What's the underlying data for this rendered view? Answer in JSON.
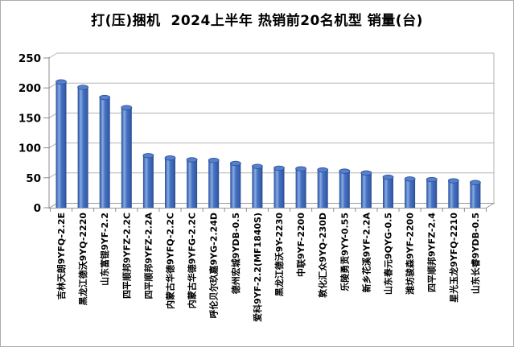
{
  "window": {
    "title": "打(压)捆机  2024上半年 热销前20名机型 销量(台)"
  },
  "chart_data": {
    "type": "bar",
    "style": "3d-cylinder",
    "title": "打(压)捆机  2024上半年 热销前20名机型 销量(台)",
    "xlabel": "",
    "ylabel": "",
    "ylim": [
      0,
      250
    ],
    "ytick_interval": 50,
    "yticks": [
      0,
      50,
      100,
      150,
      200,
      250
    ],
    "grid": true,
    "legend": "none",
    "bar_color": "#4472c4",
    "bar_color_dark": "#2c4c92",
    "bar_color_light": "#8aabde",
    "grid_color": "#b3b3b3",
    "axis_color": "#8c8c8c",
    "categories": [
      "吉林天朗9YFQ-2.2E",
      "黑龙江德沃9YQ-2220",
      "山东富锟9YF-2.2",
      "四平顺邦9YFZ-2.2C",
      "四平顺邦9YFZ-2.2A",
      "内蒙古华德9YFQ-2.2C",
      "内蒙古华德9YFG-2.2C",
      "呼伦贝尔玖嘉9YG-2.24D",
      "德州宏城9YDB-0.5",
      "爱科9YF-2.2(MF1840S)",
      "黑龙江德沃9Y-2230",
      "中联9YF-2200",
      "敦化汇众9YQ-230D",
      "乐陵勇贡9YY-0.55",
      "新乡花溪9YF-2.2A",
      "山东春元9QYG-0.5",
      "潍坊骏森9YF-2200",
      "四平顺邦9YFZ-2.4",
      "星光玉龙9YFQ-2210",
      "山东长睿9YDB-0.5"
    ],
    "values": [
      210,
      201,
      184,
      167,
      87,
      83,
      80,
      79,
      74,
      69,
      66,
      65,
      63,
      61,
      58,
      51,
      48,
      47,
      45,
      42
    ]
  }
}
